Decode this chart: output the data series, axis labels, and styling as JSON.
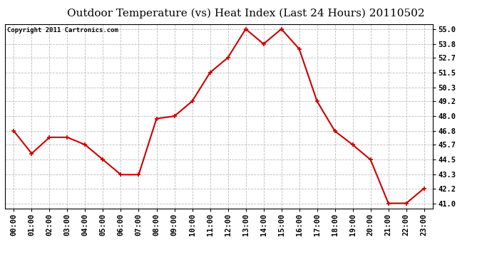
{
  "title": "Outdoor Temperature (vs) Heat Index (Last 24 Hours) 20110502",
  "copyright_text": "Copyright 2011 Cartronics.com",
  "x_labels": [
    "00:00",
    "01:00",
    "02:00",
    "03:00",
    "04:00",
    "05:00",
    "06:00",
    "07:00",
    "08:00",
    "09:00",
    "10:00",
    "11:00",
    "12:00",
    "13:00",
    "14:00",
    "15:00",
    "16:00",
    "17:00",
    "18:00",
    "19:00",
    "20:00",
    "21:00",
    "22:00",
    "23:00"
  ],
  "y_values": [
    46.8,
    45.0,
    46.3,
    46.3,
    45.7,
    44.5,
    43.3,
    43.3,
    47.8,
    48.0,
    49.2,
    51.5,
    52.7,
    55.0,
    53.8,
    55.0,
    53.4,
    49.2,
    46.8,
    45.7,
    44.5,
    41.0,
    41.0,
    42.2
  ],
  "line_color": "#cc0000",
  "marker": "+",
  "marker_size": 5,
  "line_width": 1.5,
  "y_ticks": [
    41.0,
    42.2,
    43.3,
    44.5,
    45.7,
    46.8,
    48.0,
    49.2,
    50.3,
    51.5,
    52.7,
    53.8,
    55.0
  ],
  "y_min": 40.6,
  "y_max": 55.4,
  "grid_color": "#bbbbbb",
  "grid_style": "--",
  "bg_color": "#ffffff",
  "plot_bg_color": "#ffffff",
  "title_fontsize": 11,
  "copyright_fontsize": 6.5,
  "tick_fontsize": 7.5,
  "marker_edge_width": 1.2
}
